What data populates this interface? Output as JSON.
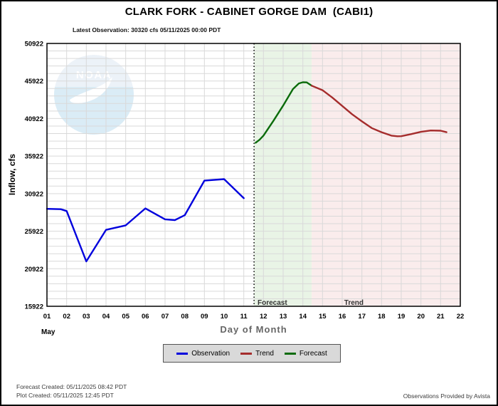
{
  "header": {
    "title": "CLARK FORK - CABINET GORGE DAM  (CABI1)",
    "subtitle": "Latest Observation: 30320 cfs 05/11/2025 00:00 PDT"
  },
  "watermark": {
    "name": "noaa-logo",
    "text": "NOAA"
  },
  "chart_data": {
    "type": "line",
    "title": "CLARK FORK - CABINET GORGE DAM (CABI1)",
    "xlabel": "Day of Month",
    "ylabel": "Inflow, cfs",
    "month_label": "May",
    "xlim": [
      1,
      22
    ],
    "ylim": [
      15922,
      50922
    ],
    "x_ticks": [
      "01",
      "02",
      "03",
      "04",
      "05",
      "06",
      "07",
      "08",
      "09",
      "10",
      "11",
      "12",
      "13",
      "14",
      "15",
      "16",
      "17",
      "18",
      "19",
      "20",
      "21",
      "22"
    ],
    "y_ticks": [
      15922,
      20922,
      25922,
      30922,
      35922,
      40922,
      45922,
      50922
    ],
    "grid": {
      "vertical_every_day": true,
      "horizontal_every_cfs": 1000,
      "color": "#d9d9d9"
    },
    "now_line_day": 11.52,
    "regions": [
      {
        "label": "Forecast",
        "from_day": 11.52,
        "to_day": 14.45,
        "fill": "#e9f4e6",
        "label_day": 11.7
      },
      {
        "label": "Trend",
        "from_day": 14.45,
        "to_day": 22,
        "fill": "#faecec",
        "label_day": 16.1
      }
    ],
    "series": [
      {
        "name": "Observation",
        "color": "#0000dd",
        "points": [
          [
            1,
            28900
          ],
          [
            1.7,
            28850
          ],
          [
            2,
            28600
          ],
          [
            3,
            21900
          ],
          [
            4,
            26100
          ],
          [
            5,
            26700
          ],
          [
            6,
            28950
          ],
          [
            7,
            27500
          ],
          [
            7.5,
            27400
          ],
          [
            8,
            28050
          ],
          [
            9,
            32650
          ],
          [
            10,
            32850
          ],
          [
            11,
            30320
          ]
        ]
      },
      {
        "name": "Forecast",
        "color": "#0b6b0b",
        "points": [
          [
            11.6,
            37700
          ],
          [
            11.8,
            38100
          ],
          [
            12,
            38650
          ],
          [
            12.5,
            40600
          ],
          [
            13,
            42650
          ],
          [
            13.5,
            44850
          ],
          [
            13.8,
            45600
          ],
          [
            14,
            45750
          ],
          [
            14.2,
            45730
          ],
          [
            14.45,
            45300
          ]
        ]
      },
      {
        "name": "Trend",
        "color": "#a52c2c",
        "points": [
          [
            14.45,
            45300
          ],
          [
            15,
            44700
          ],
          [
            15.5,
            43700
          ],
          [
            16,
            42600
          ],
          [
            16.5,
            41500
          ],
          [
            17,
            40550
          ],
          [
            17.5,
            39650
          ],
          [
            18,
            39100
          ],
          [
            18.5,
            38650
          ],
          [
            18.8,
            38560
          ],
          [
            19,
            38570
          ],
          [
            19.5,
            38850
          ],
          [
            20,
            39150
          ],
          [
            20.5,
            39330
          ],
          [
            21,
            39300
          ],
          [
            21.3,
            39100
          ]
        ]
      }
    ],
    "legend": {
      "position": "bottom-center",
      "entries": [
        {
          "label": "Observation",
          "color": "#0000dd"
        },
        {
          "label": "Trend",
          "color": "#a52c2c"
        },
        {
          "label": "Forecast",
          "color": "#0b6b0b"
        }
      ]
    }
  },
  "footer": {
    "forecast_created": "Forecast Created: 05/11/2025 08:42 PDT",
    "plot_created": "Plot Created: 05/11/2025 12:45 PDT",
    "attribution": "Observations Provided by Avista"
  }
}
